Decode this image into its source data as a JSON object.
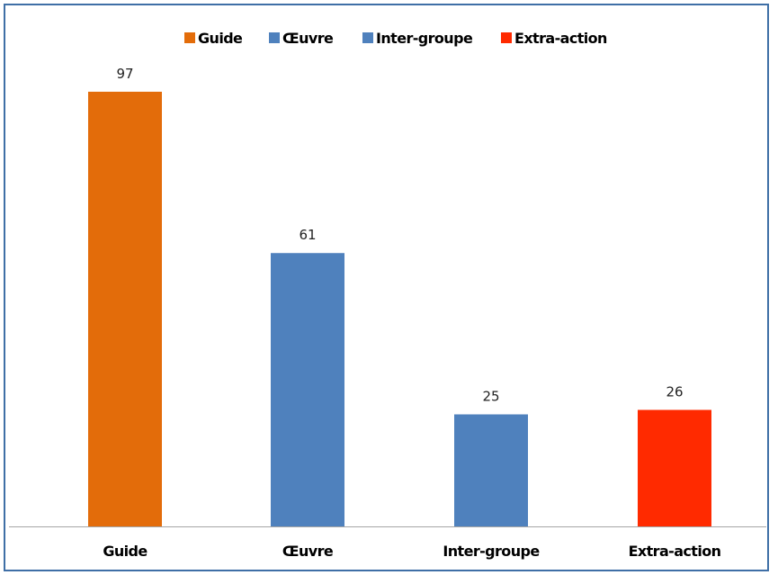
{
  "chart_data": {
    "type": "bar",
    "title": "",
    "xlabel": "",
    "ylabel": "",
    "categories": [
      "Guide",
      "Œuvre",
      "Inter-groupe",
      "Extra-action"
    ],
    "series": [
      {
        "name": "Guide",
        "category": "Guide",
        "value": 97,
        "color": "#e36c0a"
      },
      {
        "name": "Œuvre",
        "category": "Œuvre",
        "value": 61,
        "color": "#4f81bd"
      },
      {
        "name": "Inter-groupe",
        "category": "Inter-groupe",
        "value": 25,
        "color": "#4f81bd"
      },
      {
        "name": "Extra-action",
        "category": "Extra-action",
        "value": 26,
        "color": "#ff2a00"
      }
    ],
    "values": [
      97,
      61,
      25,
      26
    ],
    "data_labels": [
      "97",
      "61",
      "25",
      "26"
    ],
    "ylim": [
      0,
      100
    ],
    "grid": false,
    "legend_position": "top",
    "axis_color": "#a6a6a6",
    "frame_color": "#3f6fa6"
  }
}
